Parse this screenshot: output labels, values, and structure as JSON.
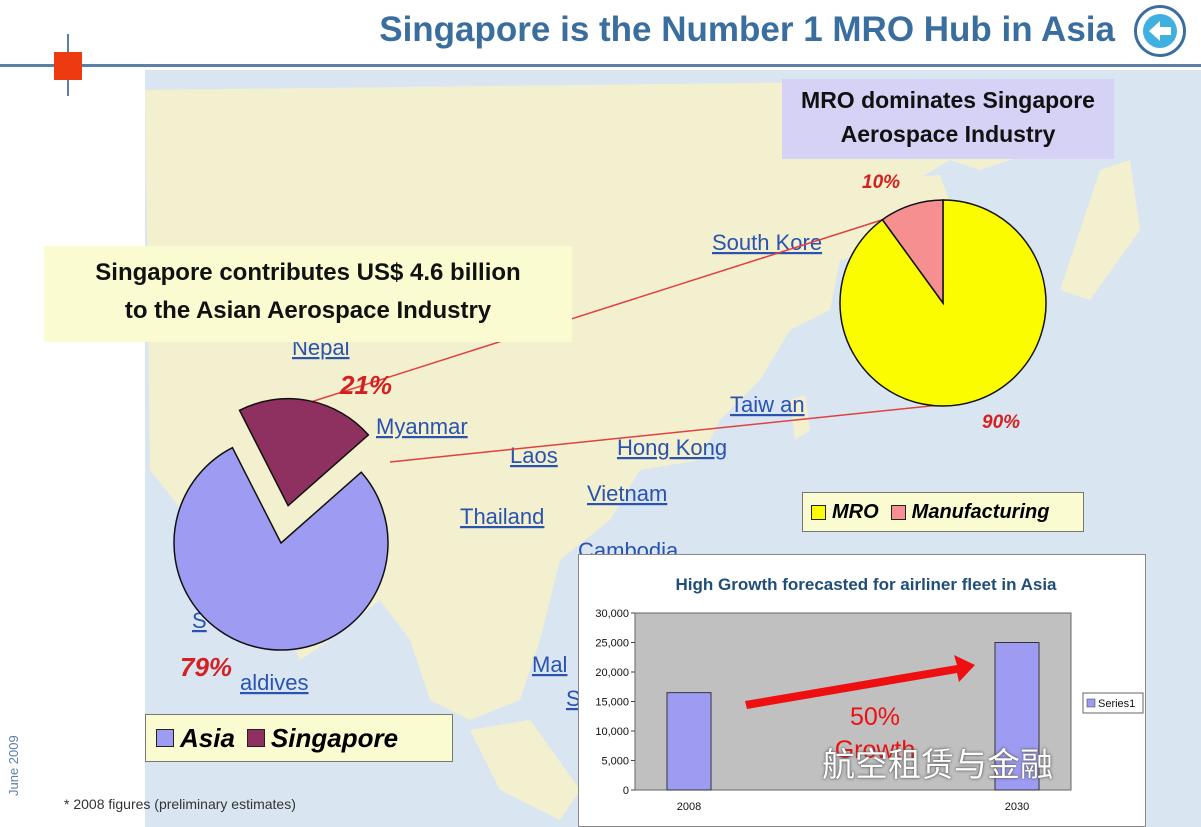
{
  "slide": {
    "title": "Singapore is the Number 1 MRO Hub in Asia",
    "mro_box_lines": [
      "MRO dominates Singapore",
      "Aerospace Industry"
    ],
    "contrib_box_lines": [
      "Singapore contributes US$ 4.6 billion",
      "to the Asian Aerospace Industry"
    ],
    "footnote": "* 2008 figures (preliminary estimates)",
    "date_vertical": "June 2009",
    "watermark": "航空租赁与金融",
    "map_labels": [
      "South Kore",
      "Nepal",
      "Myanmar",
      "Laos",
      "Hong Kong",
      "Taiw an",
      "Vietnam",
      "Thailand",
      "Cambodia",
      "Mal",
      "S",
      "aldives",
      "S"
    ],
    "colors": {
      "title": "#3a6e9e",
      "accent_red": "#d62020",
      "map_land": "#f3f0cf",
      "map_sea": "#d9e6f2"
    }
  },
  "chart_data": [
    {
      "type": "pie",
      "labels": [
        "Asia",
        "Singapore"
      ],
      "values": [
        79,
        21
      ],
      "value_labels": [
        "79%",
        "21%"
      ],
      "colors": [
        "#9e9cf2",
        "#8e3060"
      ],
      "exploded": "Singapore",
      "legend_position": "bottom-left"
    },
    {
      "type": "pie",
      "labels": [
        "MRO",
        "Manufacturing"
      ],
      "values": [
        90,
        10
      ],
      "value_labels": [
        "90%",
        "10%"
      ],
      "colors": [
        "#fcfc00",
        "#f69090"
      ],
      "legend_position": "below"
    },
    {
      "type": "bar",
      "title": "High Growth forecasted for airliner fleet in Asia",
      "categories": [
        "2008",
        "2030"
      ],
      "series": [
        {
          "name": "Series1",
          "values": [
            16500,
            25000
          ]
        }
      ],
      "ylim": [
        0,
        30000
      ],
      "yticks": [
        0,
        5000,
        10000,
        15000,
        20000,
        25000,
        30000
      ],
      "ytick_labels": [
        "0",
        "5,000",
        "10,000",
        "15,000",
        "20,000",
        "25,000",
        "30,000"
      ],
      "annotation_lines": [
        "50%",
        "Growth"
      ],
      "grid": false,
      "legend_position": "right"
    }
  ]
}
